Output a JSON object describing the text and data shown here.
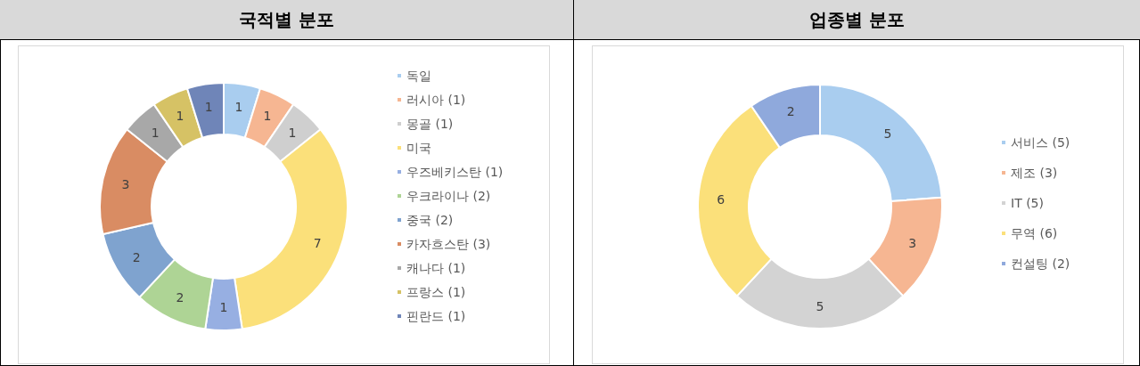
{
  "chart_data": [
    {
      "type": "donut",
      "title": "국적별 분포",
      "categories": [
        "독일",
        "러시아 (1)",
        "몽골 (1)",
        "미국",
        "우즈베키스탄 (1)",
        "우크라이나 (2)",
        "중국 (2)",
        "카자흐스탄 (3)",
        "캐나다 (1)",
        "프랑스 (1)",
        "핀란드 (1)"
      ],
      "values": [
        1,
        1,
        1,
        7,
        1,
        2,
        2,
        3,
        1,
        1,
        1
      ],
      "colors": [
        "#a9cdef",
        "#f6b692",
        "#cfcfcf",
        "#fbe07a",
        "#97afe2",
        "#aed495",
        "#7fa3cf",
        "#d98c63",
        "#a8a8a8",
        "#d6c265",
        "#6f85b8"
      ],
      "data_labels": true,
      "legend": "right"
    },
    {
      "type": "donut",
      "title": "업종별 분포",
      "categories": [
        "서비스 (5)",
        "제조 (3)",
        "IT (5)",
        "무역 (6)",
        "컨설팅 (2)"
      ],
      "values": [
        5,
        3,
        5,
        6,
        2
      ],
      "colors": [
        "#a9cdef",
        "#f6b692",
        "#d3d3d3",
        "#fbe07a",
        "#8fa9dc"
      ],
      "data_labels": true,
      "legend": "right"
    }
  ]
}
